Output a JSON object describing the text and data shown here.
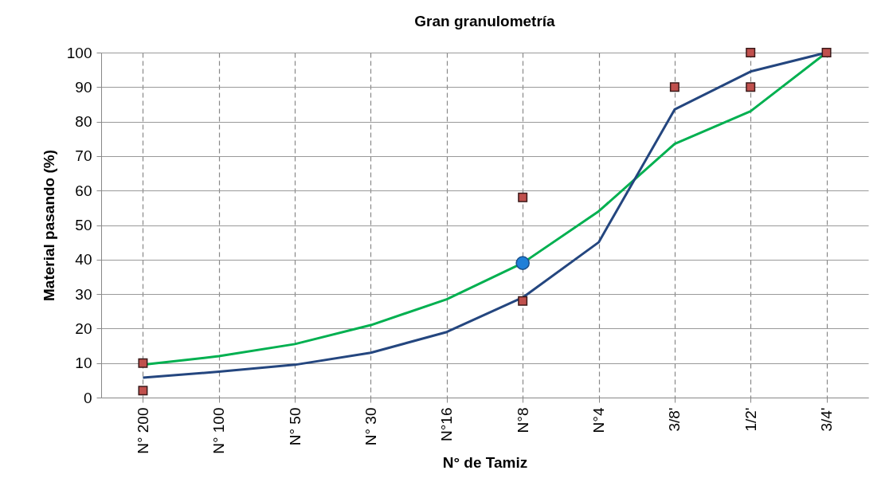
{
  "chart_data": {
    "type": "line",
    "title": "Gran granulometría",
    "xlabel": "N° de Tamiz",
    "ylabel": "Material pasando (%)",
    "categories": [
      "N° 200",
      "N° 100",
      "N° 50",
      "N° 30",
      "N°16",
      "N°8",
      "N°4",
      "3/8'",
      "1/2'",
      "3/4'"
    ],
    "ylim": [
      0,
      100
    ],
    "yticks": [
      0,
      10,
      20,
      30,
      40,
      50,
      60,
      70,
      80,
      90,
      100
    ],
    "grid": true,
    "series": [
      {
        "color": "#00b050",
        "marker": "none",
        "values": [
          9.5,
          12,
          15.5,
          21,
          28.5,
          39,
          54,
          73.5,
          83,
          100
        ]
      },
      {
        "color": "#24467f",
        "marker": "none",
        "values": [
          5.8,
          7.5,
          9.5,
          13,
          19,
          29,
          45,
          83.5,
          94.5,
          100
        ]
      },
      {
        "type": "scatter",
        "color": "#c0504d",
        "marker": "square",
        "x": [
          "N° 200",
          "N° 200",
          "N°8",
          "N°8",
          "3/8'",
          "1/2'",
          "1/2'",
          "3/4'"
        ],
        "values": [
          10,
          2,
          58,
          28,
          90,
          100,
          90,
          100
        ]
      },
      {
        "type": "scatter",
        "color": "#1f7fd8",
        "marker": "circle",
        "x": [
          "N°8"
        ],
        "values": [
          39
        ]
      }
    ]
  }
}
